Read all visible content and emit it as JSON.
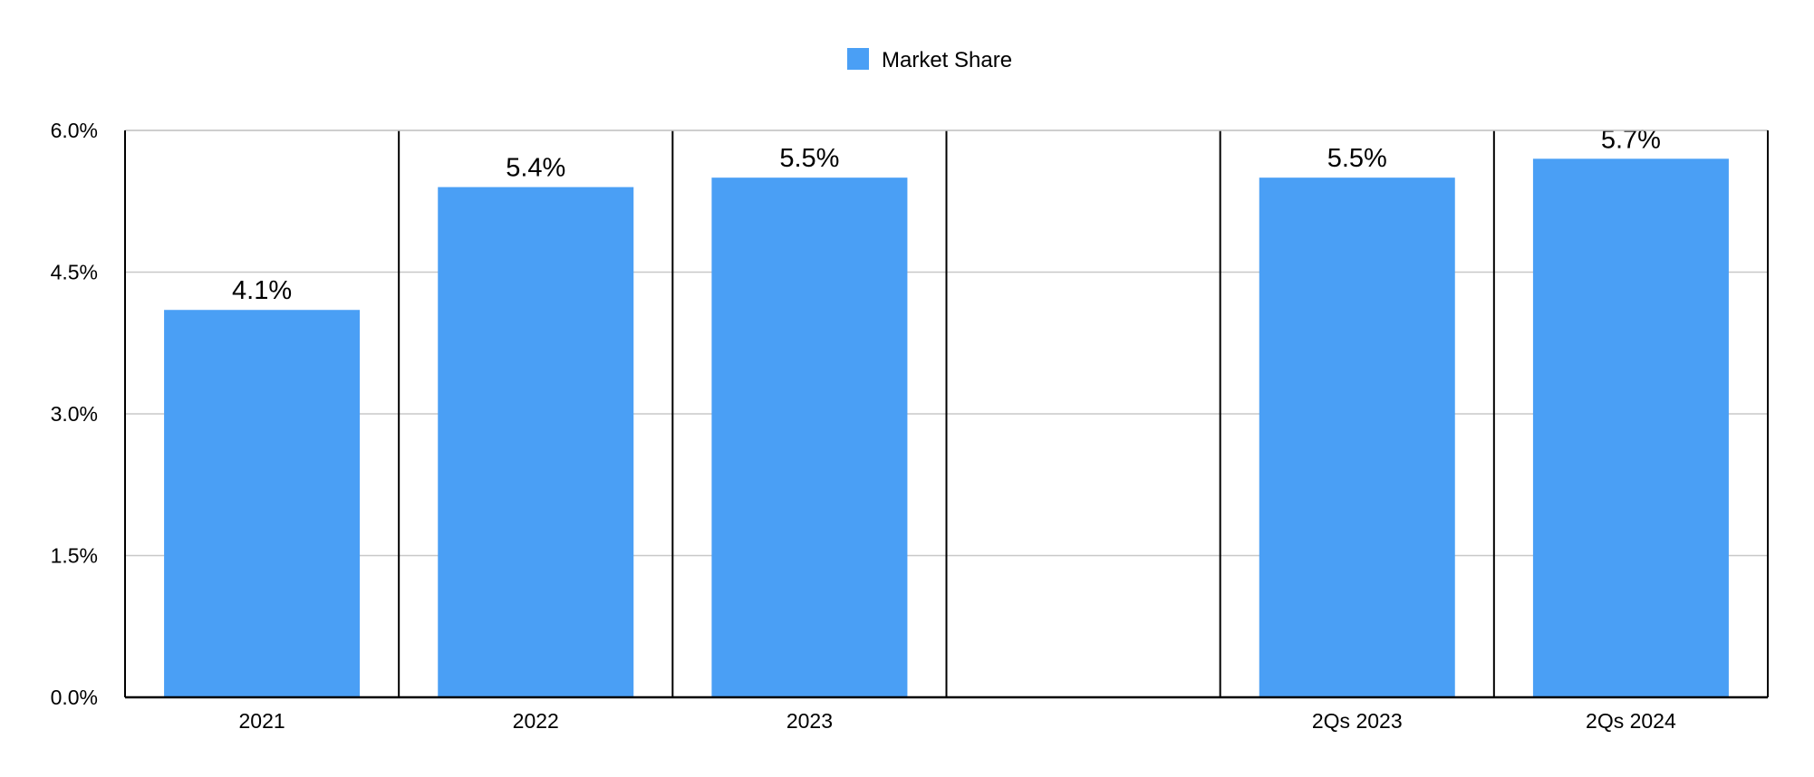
{
  "chart_data": {
    "type": "bar",
    "categories": [
      "2021",
      "2022",
      "2023",
      "",
      "2Qs 2023",
      "2Qs 2024"
    ],
    "series": [
      {
        "name": "Market Share",
        "values": [
          4.1,
          5.4,
          5.5,
          null,
          5.5,
          5.7
        ],
        "data_labels": [
          "4.1%",
          "5.4%",
          "5.5%",
          "",
          "5.5%",
          "5.7%"
        ]
      }
    ],
    "ylim": [
      0,
      6.0
    ],
    "yticks": [
      {
        "value": 0,
        "label": "0.0%"
      },
      {
        "value": 1.5,
        "label": "1.5%"
      },
      {
        "value": 3.0,
        "label": "3.0%"
      },
      {
        "value": 4.5,
        "label": "4.5%"
      },
      {
        "value": 6.0,
        "label": "6.0%"
      }
    ],
    "grid": true,
    "legend_position": "top-center",
    "bar_color": "#4a9ff5",
    "gridline_color": "#c8c8c8",
    "axis_color": "#000000"
  }
}
